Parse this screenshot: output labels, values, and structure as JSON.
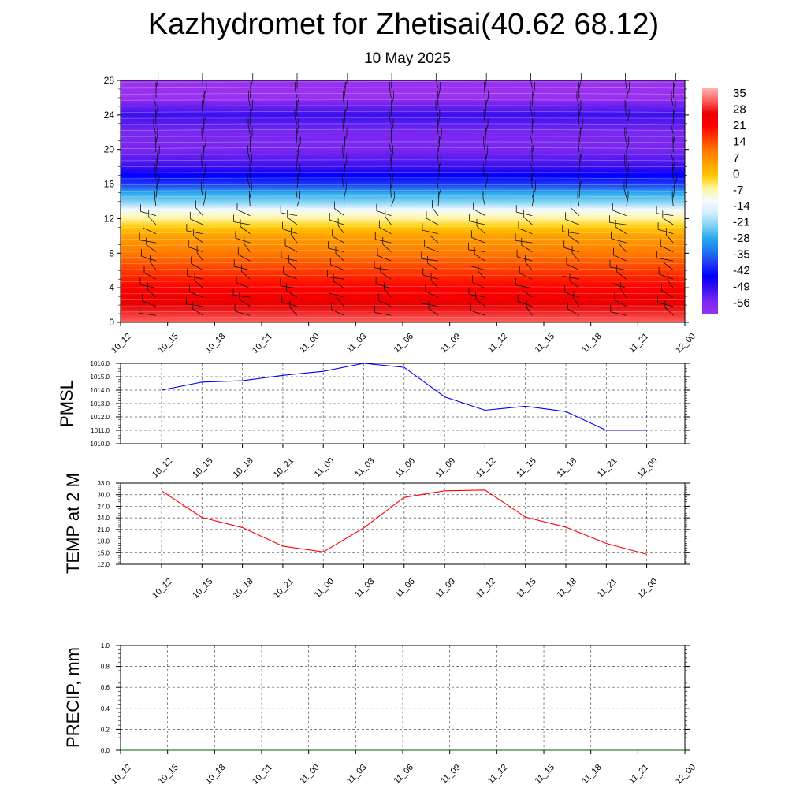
{
  "page": {
    "title": "Kazhydromet for Zhetisai(40.62 68.12)",
    "subtitle": "10 May 2025"
  },
  "colors": {
    "pmsl_line": "#0000ff",
    "temp_line": "#ff0000",
    "precip_line": "#006400",
    "colorbar": [
      "#ffb3b3",
      "#ff6060",
      "#e80000",
      "#ff0000",
      "#ff3a00",
      "#ff7a00",
      "#ffa000",
      "#ffc800",
      "#fff5a0",
      "#f5fbff",
      "#cfeeff",
      "#7fd0f5",
      "#28a8ec",
      "#1f78f0",
      "#2238f5",
      "#0000ff",
      "#3a10f0",
      "#7a28f0",
      "#9a30f0"
    ]
  },
  "chart_data": [
    {
      "type": "heatmap",
      "title": "",
      "xlabel": "",
      "ylabel": "",
      "x_categories": [
        "10_12",
        "10_15",
        "10_18",
        "10_21",
        "11_00",
        "11_03",
        "11_06",
        "11_09",
        "11_12",
        "11_15",
        "11_18",
        "11_21",
        "12_00"
      ],
      "y_ticks": [
        "0",
        "4",
        "8",
        "12",
        "16",
        "20",
        "24",
        "28"
      ],
      "ylim": [
        0,
        28
      ],
      "colorbar_labels": [
        "35",
        "28",
        "21",
        "14",
        "7",
        "0",
        "-7",
        "-14",
        "-21",
        "-28",
        "-35",
        "-42",
        "-49",
        "-56"
      ],
      "colorbar_range": [
        -60,
        38
      ],
      "levels": [
        0,
        2,
        4,
        6,
        8,
        10,
        11,
        12,
        13,
        14,
        15,
        16,
        17,
        18,
        20,
        22,
        24,
        26,
        28
      ],
      "temperature_by_level": [
        33,
        27,
        22,
        16,
        10,
        5,
        2,
        -3,
        -12,
        -20,
        -28,
        -36,
        -44,
        -51,
        -56,
        -55,
        -50,
        -58,
        -59
      ]
    },
    {
      "type": "line",
      "ylabel": "PMSL",
      "x": [
        "10_12",
        "10_15",
        "10_18",
        "10_21",
        "11_00",
        "11_03",
        "11_06",
        "11_09",
        "11_12",
        "11_15",
        "11_18",
        "11_21",
        "12_00"
      ],
      "y_ticks": [
        "1010.0",
        "1011.0",
        "1012.0",
        "1013.0",
        "1014.0",
        "1015.0",
        "1016.0"
      ],
      "ylim": [
        1010,
        1016
      ],
      "grid": true,
      "series": [
        {
          "values": [
            1014.0,
            1014.6,
            1014.7,
            1015.1,
            1015.4,
            1016.0,
            1015.7,
            1013.5,
            1012.5,
            1012.8,
            1012.4,
            1011.0,
            1011.0
          ]
        }
      ]
    },
    {
      "type": "line",
      "ylabel": "TEMP at 2 M",
      "x": [
        "10_12",
        "10_15",
        "10_18",
        "10_21",
        "11_00",
        "11_03",
        "11_06",
        "11_09",
        "11_12",
        "11_15",
        "11_18",
        "11_21",
        "12_00"
      ],
      "y_ticks": [
        "12.0",
        "15.0",
        "18.0",
        "21.0",
        "24.0",
        "27.0",
        "30.0",
        "33.0"
      ],
      "ylim": [
        12,
        33
      ],
      "grid": true,
      "series": [
        {
          "values": [
            31.0,
            24.1,
            21.5,
            16.7,
            15.2,
            21.4,
            29.3,
            31.0,
            31.2,
            24.2,
            21.6,
            17.4,
            14.6
          ]
        }
      ]
    },
    {
      "type": "line",
      "ylabel": "PRECIP, mm",
      "x_categories": [
        "10_12",
        "10_15",
        "10_18",
        "10_21",
        "11_00",
        "11_03",
        "11_06",
        "11_09",
        "11_12",
        "11_15",
        "11_18",
        "11_21",
        "12_00"
      ],
      "y_ticks": [
        "0.0",
        "0.2",
        "0.4",
        "0.6",
        "0.8",
        "1.0"
      ],
      "ylim": [
        0,
        1
      ],
      "grid": true,
      "series": [
        {
          "values": [
            0,
            0,
            0,
            0,
            0,
            0,
            0,
            0,
            0,
            0,
            0,
            0,
            0
          ]
        }
      ]
    }
  ]
}
